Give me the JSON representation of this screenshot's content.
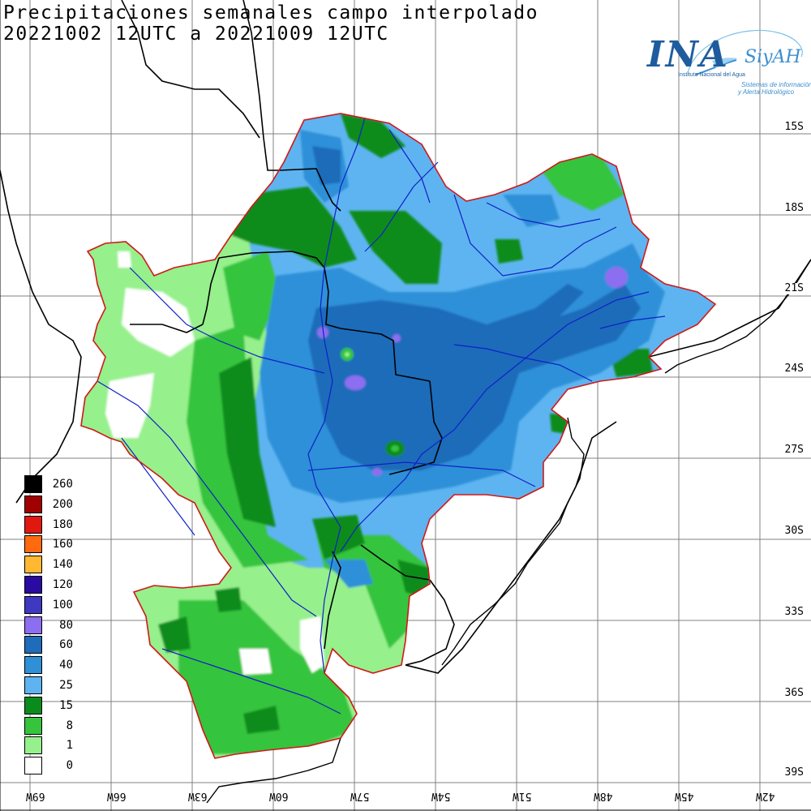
{
  "title": {
    "line1": "Precipitaciones semanales campo interpolado",
    "line2": "20221002 12UTC a 20221009 12UTC"
  },
  "logo": {
    "name": "INA",
    "product": "SiyAH",
    "institution": "Instituto Nacional del Agua",
    "subtitle_1": "Sistemas de información",
    "subtitle_2": "y Alerta Hidrológico"
  },
  "colors": {
    "boundary": "#d01818",
    "rivers": "#1020c8",
    "borders": "#000000"
  },
  "latitude_labels": [
    "15S",
    "18S",
    "21S",
    "24S",
    "27S",
    "30S",
    "33S",
    "36S",
    "39S"
  ],
  "longitude_labels": [
    "69W",
    "66W",
    "63W",
    "60W",
    "57W",
    "54W",
    "51W",
    "48W",
    "45W",
    "42W"
  ],
  "legend": {
    "unit": "",
    "classes": [
      {
        "label": "260",
        "color": "#000000"
      },
      {
        "label": "200",
        "color": "#a00000"
      },
      {
        "label": "180",
        "color": "#e01810"
      },
      {
        "label": "160",
        "color": "#ff6a10"
      },
      {
        "label": "140",
        "color": "#ffb830"
      },
      {
        "label": "120",
        "color": "#2a0aa0"
      },
      {
        "label": "100",
        "color": "#3f38c0"
      },
      {
        "label": "80",
        "color": "#8c6ef0"
      },
      {
        "label": "60",
        "color": "#1f6cba"
      },
      {
        "label": "40",
        "color": "#2f90d8"
      },
      {
        "label": "25",
        "color": "#5eb4f0"
      },
      {
        "label": "15",
        "color": "#0a8c1c"
      },
      {
        "label": "8",
        "color": "#36c43c"
      },
      {
        "label": "1",
        "color": "#96f08c"
      },
      {
        "label": "0",
        "color": "#ffffff"
      }
    ]
  }
}
